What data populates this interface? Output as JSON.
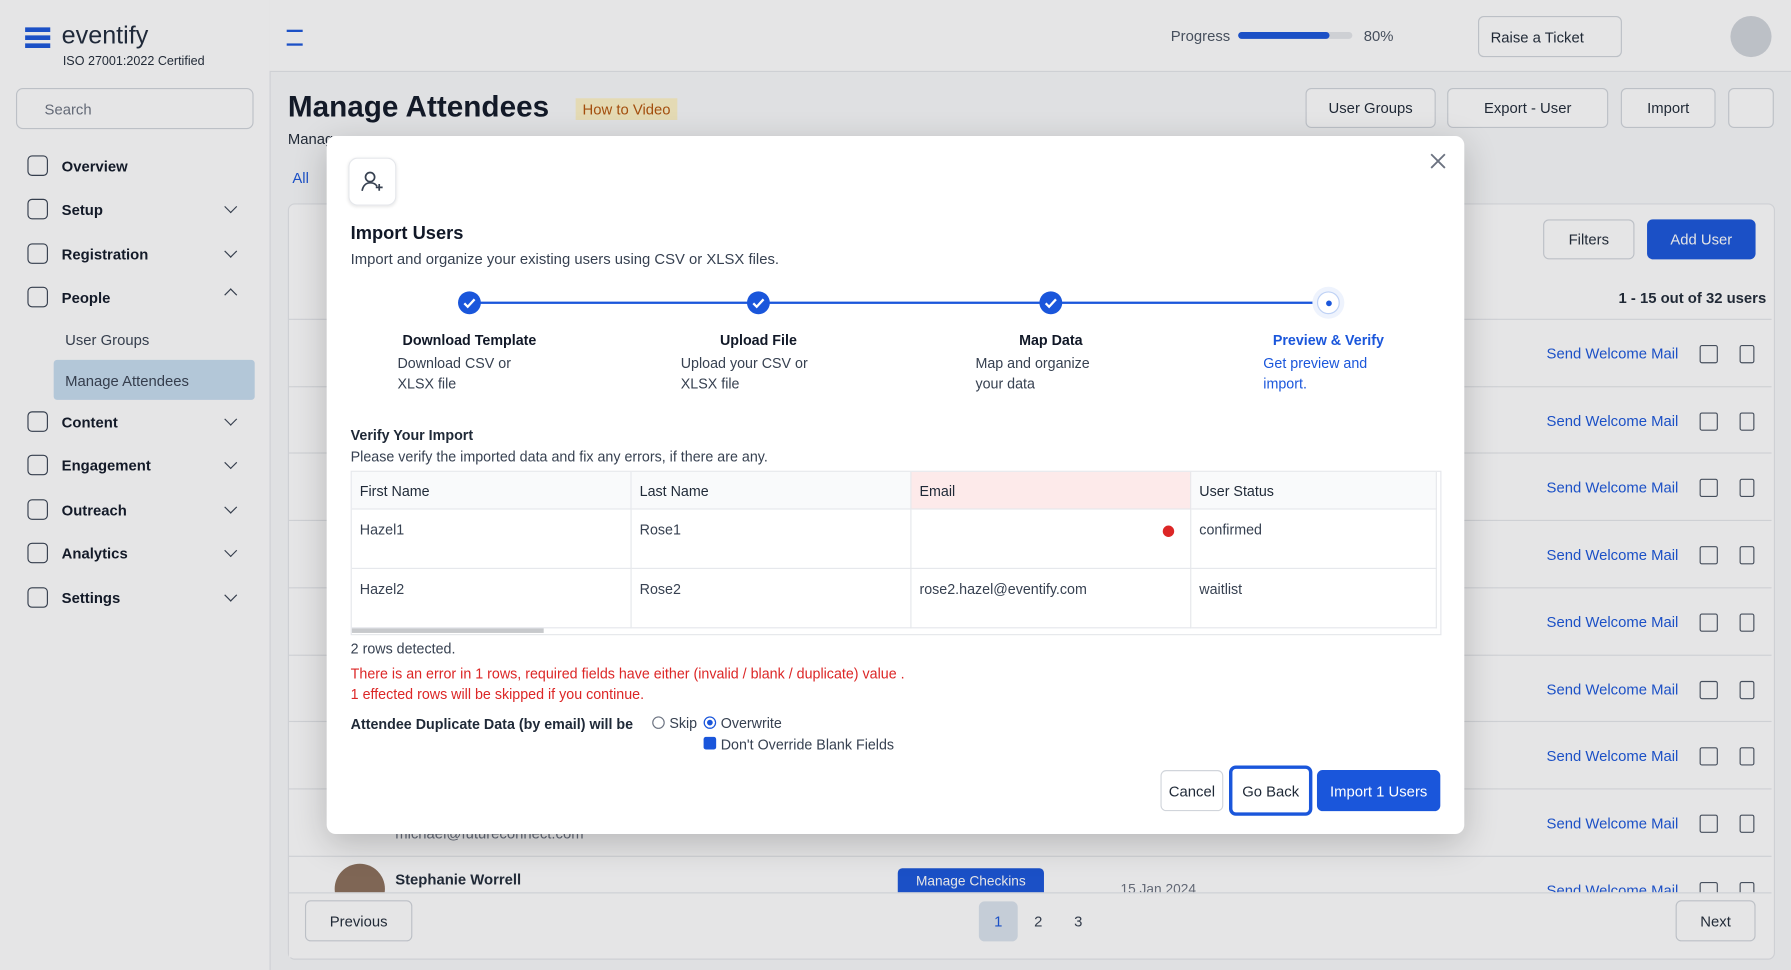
{
  "brand": {
    "name": "eventify",
    "cert": "ISO 27001:2022 Certified"
  },
  "search": "Search",
  "nav": [
    {
      "label": "Overview"
    },
    {
      "label": "Setup"
    },
    {
      "label": "Registration"
    },
    {
      "label": "People"
    },
    {
      "label": "Content"
    },
    {
      "label": "Engagement"
    },
    {
      "label": "Outreach"
    },
    {
      "label": "Analytics"
    },
    {
      "label": "Settings"
    }
  ],
  "subnav": [
    "User Groups",
    "Manage Attendees"
  ],
  "topbar": {
    "progress_label": "Progress",
    "progress": {
      "value": 80,
      "label": "80%"
    },
    "ticket": "Raise a Ticket"
  },
  "page": {
    "title": "Manage Attendees",
    "video": "How to Video",
    "subtitle": "Manag",
    "tab": "All",
    "actions": [
      "User Groups",
      "Export - User",
      "Import"
    ],
    "filters": "Filters",
    "add_user": "Add User",
    "count": "1 - 15 out of 32 users",
    "row_action": "Send Welcome Mail",
    "email_partial": "michael@futureconnect.com",
    "last_name": "Stephanie Worrell",
    "checkins": "Manage Checkins",
    "date": "15 Jan 2024"
  },
  "pagination": {
    "previous": "Previous",
    "pages": [
      "1",
      "2",
      "3"
    ],
    "next": "Next"
  },
  "modal": {
    "title": "Import Users",
    "description": "Import and organize your existing users using CSV or XLSX files.",
    "steps": [
      {
        "title": "Download Template",
        "description": "Download CSV or XLSX file"
      },
      {
        "title": "Upload File",
        "description": "Upload your CSV or XLSX file"
      },
      {
        "title": "Map Data",
        "description": "Map and organize your data"
      },
      {
        "title": "Preview & Verify",
        "description": "Get preview and import."
      }
    ],
    "verify_title": "Verify Your Import",
    "verify_description": "Please verify the imported data and fix any errors, if there are any.",
    "table": {
      "columns": [
        "First Name",
        "Last Name",
        "Email",
        "User Status"
      ],
      "rows": [
        [
          "Hazel1",
          "Rose1",
          "",
          "confirmed"
        ],
        [
          "Hazel2",
          "Rose2",
          "rose2.hazel@eventify.com",
          "waitlist"
        ]
      ]
    },
    "rows_detected": "2 rows detected.",
    "errors": [
      "There is an error in 1 rows, required fields have either (invalid / blank / duplicate) value .",
      "1 effected rows will be skipped if you continue."
    ],
    "duplicate_label": "Attendee Duplicate Data (by email) will be",
    "options": [
      "Skip",
      "Overwrite"
    ],
    "checkbox": "Don't Override Blank Fields",
    "buttons": {
      "cancel": "Cancel",
      "back": "Go Back",
      "import": "Import 1 Users"
    }
  }
}
